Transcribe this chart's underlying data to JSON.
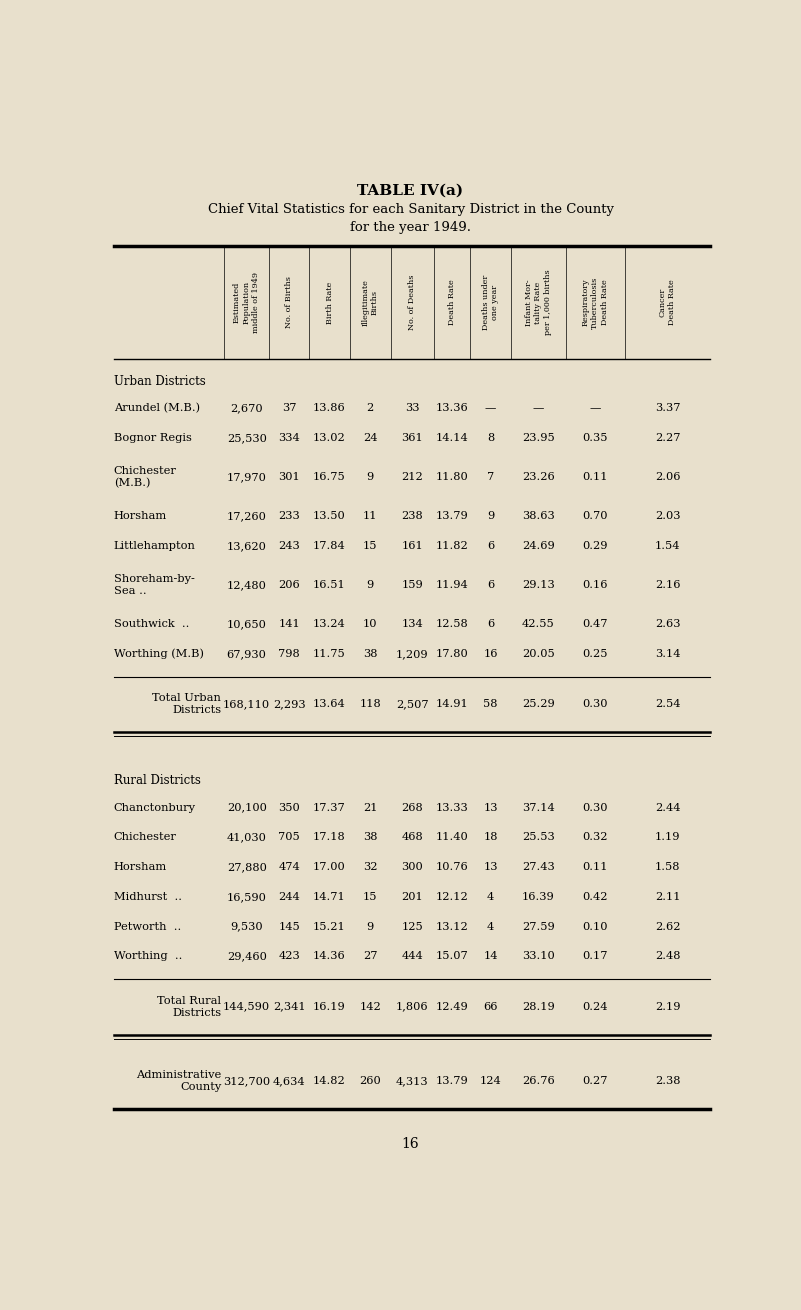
{
  "title": "TABLE IV(a)",
  "subtitle": "Chief Vital Statistics for each Sanitary District in the County\nfor the year 1949.",
  "bg_color": "#e8e0cc",
  "col_headers": [
    "Estimated\nPopulation\nmiddle of 1949",
    "No. of Births",
    "Birth Rate",
    "Illegitimate\nBirths",
    "No. of Deaths",
    "Death Rate",
    "Deaths under\none year",
    "Infant Mor-\ntality Rate\nper 1,000 births",
    "Respiratory\nTuberculosis\nDeath Rate",
    "Cancer\nDeath Rate"
  ],
  "sections": [
    {
      "section_label": "Urban Districts",
      "rows": [
        {
          "name": "Arundel (M.B.)",
          "data": [
            "2,670",
            "37",
            "13.86",
            "2",
            "33",
            "13.36",
            "—",
            "—",
            "—",
            "3.37"
          ]
        },
        {
          "name": "Bognor Regis",
          "data": [
            "25,530",
            "334",
            "13.02",
            "24",
            "361",
            "14.14",
            "8",
            "23.95",
            "0.35",
            "2.27"
          ]
        },
        {
          "name": "Chichester\n(M.B.)",
          "data": [
            "17,970",
            "301",
            "16.75",
            "9",
            "212",
            "11.80",
            "7",
            "23.26",
            "0.11",
            "2.06"
          ]
        },
        {
          "name": "Horsham",
          "data": [
            "17,260",
            "233",
            "13.50",
            "11",
            "238",
            "13.79",
            "9",
            "38.63",
            "0.70",
            "2.03"
          ]
        },
        {
          "name": "Littlehampton",
          "data": [
            "13,620",
            "243",
            "17.84",
            "15",
            "161",
            "11.82",
            "6",
            "24.69",
            "0.29",
            "1.54"
          ]
        },
        {
          "name": "Shoreham-by-\nSea ..",
          "data": [
            "12,480",
            "206",
            "16.51",
            "9",
            "159",
            "11.94",
            "6",
            "29.13",
            "0.16",
            "2.16"
          ]
        },
        {
          "name": "Southwick  ..",
          "data": [
            "10,650",
            "141",
            "13.24",
            "10",
            "134",
            "12.58",
            "6",
            "42.55",
            "0.47",
            "2.63"
          ]
        },
        {
          "name": "Worthing (M.B)",
          "data": [
            "67,930",
            "798",
            "11.75",
            "38",
            "1,209",
            "17.80",
            "16",
            "20.05",
            "0.25",
            "3.14"
          ]
        }
      ],
      "total_label": "Total Urban\nDistricts",
      "total_data": [
        "168,110",
        "2,293",
        "13.64",
        "118",
        "2,507",
        "14.91",
        "58",
        "25.29",
        "0.30",
        "2.54"
      ]
    },
    {
      "section_label": "Rural Districts",
      "rows": [
        {
          "name": "Chanctonbury",
          "data": [
            "20,100",
            "350",
            "17.37",
            "21",
            "268",
            "13.33",
            "13",
            "37.14",
            "0.30",
            "2.44"
          ]
        },
        {
          "name": "Chichester",
          "data": [
            "41,030",
            "705",
            "17.18",
            "38",
            "468",
            "11.40",
            "18",
            "25.53",
            "0.32",
            "1.19"
          ]
        },
        {
          "name": "Horsham",
          "data": [
            "27,880",
            "474",
            "17.00",
            "32",
            "300",
            "10.76",
            "13",
            "27.43",
            "0.11",
            "1.58"
          ]
        },
        {
          "name": "Midhurst  ..",
          "data": [
            "16,590",
            "244",
            "14.71",
            "15",
            "201",
            "12.12",
            "4",
            "16.39",
            "0.42",
            "2.11"
          ]
        },
        {
          "name": "Petworth  ..",
          "data": [
            "9,530",
            "145",
            "15.21",
            "9",
            "125",
            "13.12",
            "4",
            "27.59",
            "0.10",
            "2.62"
          ]
        },
        {
          "name": "Worthing  ..",
          "data": [
            "29,460",
            "423",
            "14.36",
            "27",
            "444",
            "15.07",
            "14",
            "33.10",
            "0.17",
            "2.48"
          ]
        }
      ],
      "total_label": "Total Rural\nDistricts",
      "total_data": [
        "144,590",
        "2,341",
        "16.19",
        "142",
        "1,806",
        "12.49",
        "66",
        "28.19",
        "0.24",
        "2.19"
      ]
    }
  ],
  "admin_label": "Administrative\nCounty",
  "admin_data": [
    "312,700",
    "4,634",
    "14.82",
    "260",
    "4,313",
    "13.79",
    "124",
    "26.76",
    "0.27",
    "2.38"
  ],
  "page_number": "16"
}
